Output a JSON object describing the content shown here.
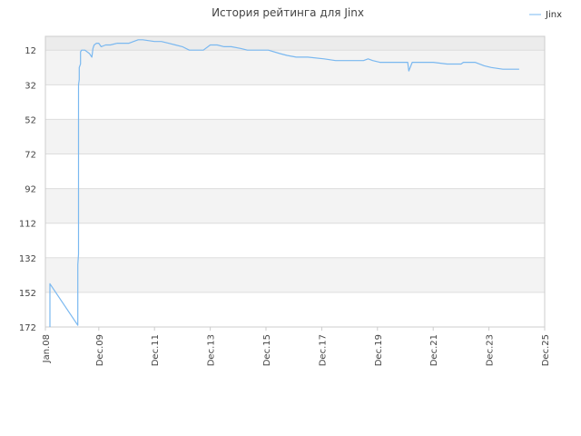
{
  "chart_data": {
    "type": "line",
    "title": "История рейтинга для Jinx",
    "y_inverted": true,
    "ylim": [
      172,
      4
    ],
    "yticks": [
      12,
      32,
      52,
      72,
      92,
      112,
      132,
      152,
      172
    ],
    "xlim": [
      "2008-01-01",
      "2025-12-01"
    ],
    "xtick_labels": [
      "Jan.08",
      "Dec.09",
      "Dec.11",
      "Dec.13",
      "Dec.15",
      "Dec.17",
      "Dec.19",
      "Dec.21",
      "Dec.23",
      "Dec.25"
    ],
    "xtick_dates": [
      "2008-01-01",
      "2009-12-01",
      "2011-12-01",
      "2013-12-01",
      "2015-12-01",
      "2017-12-01",
      "2019-12-01",
      "2021-12-01",
      "2023-12-01",
      "2025-12-01"
    ],
    "grid": true,
    "legend_position": "top-right",
    "series": [
      {
        "name": "Jinx",
        "color": "#7ab8f0",
        "points": [
          [
            "2008-03-01",
            172
          ],
          [
            "2008-03-01",
            147
          ],
          [
            "2009-03-01",
            171
          ],
          [
            "2009-03-01",
            136
          ],
          [
            "2009-03-10",
            130
          ],
          [
            "2009-03-10",
            32
          ],
          [
            "2009-03-20",
            29
          ],
          [
            "2009-03-20",
            22
          ],
          [
            "2009-04-05",
            20
          ],
          [
            "2009-04-05",
            13
          ],
          [
            "2009-04-20",
            12
          ],
          [
            "2009-06-01",
            12
          ],
          [
            "2009-08-01",
            14
          ],
          [
            "2009-09-01",
            16
          ],
          [
            "2009-09-15",
            11
          ],
          [
            "2009-10-01",
            9
          ],
          [
            "2009-11-01",
            8
          ],
          [
            "2009-12-01",
            8
          ],
          [
            "2010-01-01",
            10
          ],
          [
            "2010-03-01",
            9
          ],
          [
            "2010-05-01",
            9
          ],
          [
            "2010-08-01",
            8
          ],
          [
            "2010-11-01",
            8
          ],
          [
            "2011-01-01",
            8
          ],
          [
            "2011-03-01",
            7
          ],
          [
            "2011-05-01",
            6
          ],
          [
            "2011-07-01",
            6
          ],
          [
            "2011-12-01",
            7
          ],
          [
            "2012-03-01",
            7
          ],
          [
            "2012-06-01",
            8
          ],
          [
            "2012-09-01",
            9
          ],
          [
            "2012-12-01",
            10
          ],
          [
            "2013-03-01",
            12
          ],
          [
            "2013-06-01",
            12
          ],
          [
            "2013-09-01",
            12
          ],
          [
            "2013-12-01",
            9
          ],
          [
            "2014-03-01",
            9
          ],
          [
            "2014-06-01",
            10
          ],
          [
            "2014-09-01",
            10
          ],
          [
            "2015-01-01",
            11
          ],
          [
            "2015-04-01",
            12
          ],
          [
            "2015-08-01",
            12
          ],
          [
            "2016-01-01",
            12
          ],
          [
            "2016-06-01",
            14
          ],
          [
            "2016-09-01",
            15
          ],
          [
            "2017-01-01",
            16
          ],
          [
            "2017-06-01",
            16
          ],
          [
            "2018-01-01",
            17
          ],
          [
            "2018-06-01",
            18
          ],
          [
            "2019-01-01",
            18
          ],
          [
            "2019-06-01",
            18
          ],
          [
            "2019-08-01",
            17
          ],
          [
            "2019-10-01",
            18
          ],
          [
            "2020-01-01",
            19
          ],
          [
            "2020-06-01",
            19
          ],
          [
            "2021-01-01",
            19
          ],
          [
            "2021-01-15",
            24
          ],
          [
            "2021-03-01",
            19
          ],
          [
            "2021-06-01",
            19
          ],
          [
            "2021-12-01",
            19
          ],
          [
            "2022-06-01",
            20
          ],
          [
            "2022-12-01",
            20
          ],
          [
            "2023-01-01",
            19
          ],
          [
            "2023-06-01",
            19
          ],
          [
            "2023-10-01",
            21
          ],
          [
            "2024-01-01",
            22
          ],
          [
            "2024-06-01",
            23
          ],
          [
            "2025-01-01",
            23
          ]
        ]
      }
    ]
  },
  "colors": {
    "band_shaded": "#f3f3f3",
    "band_top": "#ececec",
    "band_plain": "#ffffff",
    "grid": "#dddddd",
    "axis": "#cccccc",
    "line": "#7ab8f0"
  }
}
